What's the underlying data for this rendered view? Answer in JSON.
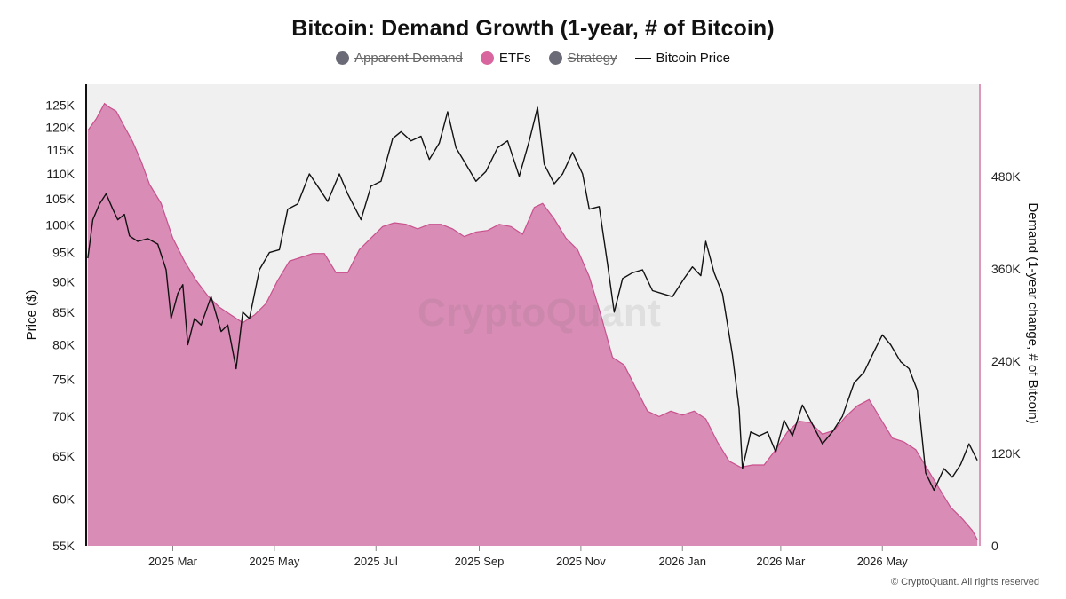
{
  "chart_data": {
    "type": "area",
    "title": "Bitcoin: Demand Growth (1-year, # of Bitcoin)",
    "legend": [
      {
        "name": "Apparent Demand",
        "color": "#6b6b78",
        "marker": "dot",
        "hidden": true
      },
      {
        "name": "ETFs",
        "color": "#d9659f",
        "marker": "dot",
        "hidden": false
      },
      {
        "name": "Strategy",
        "color": "#6b6b78",
        "marker": "dot",
        "hidden": true
      },
      {
        "name": "Bitcoin Price",
        "color": "#111111",
        "marker": "line",
        "hidden": false
      }
    ],
    "legend_placement": "top-center",
    "ylabel_left": "Price ($)",
    "ylabel_right": "Demand (1-year change, # of Bitcoin)",
    "y_left_scale": "log",
    "y_left_range": [
      55000,
      130000
    ],
    "y_left_ticks": [
      55000,
      60000,
      65000,
      70000,
      75000,
      80000,
      85000,
      90000,
      95000,
      100000,
      105000,
      110000,
      115000,
      120000,
      125000
    ],
    "y_left_tick_labels": [
      "55K",
      "60K",
      "65K",
      "70K",
      "75K",
      "80K",
      "85K",
      "90K",
      "95K",
      "100K",
      "105K",
      "110K",
      "115K",
      "120K",
      "125K"
    ],
    "y_right_range": [
      0,
      600000
    ],
    "y_right_ticks": [
      0,
      120000,
      240000,
      360000,
      480000
    ],
    "y_right_tick_labels": [
      "0",
      "120K",
      "240K",
      "360K",
      "480K"
    ],
    "x_range": [
      "2025-01-08",
      "2026-06-28"
    ],
    "x_ticks": [
      "2025-03-01",
      "2025-05-01",
      "2025-07-01",
      "2025-09-01",
      "2025-11-01",
      "2026-01-01",
      "2026-03-01",
      "2026-05-01"
    ],
    "x_tick_labels": [
      "2025 Mar",
      "2025 May",
      "2025 Jul",
      "2025 Sep",
      "2025 Nov",
      "2026 Jan",
      "2026 Mar",
      "2026 May"
    ],
    "grid": false,
    "series": [
      {
        "name": "ETFs",
        "axis": "right",
        "color": "#d9659f",
        "points": [
          [
            "2025-01-09",
            540000
          ],
          [
            "2025-01-14",
            555000
          ],
          [
            "2025-01-19",
            575000
          ],
          [
            "2025-01-22",
            570000
          ],
          [
            "2025-01-26",
            565000
          ],
          [
            "2025-01-31",
            545000
          ],
          [
            "2025-02-05",
            525000
          ],
          [
            "2025-02-10",
            500000
          ],
          [
            "2025-02-15",
            470000
          ],
          [
            "2025-02-22",
            445000
          ],
          [
            "2025-03-01",
            400000
          ],
          [
            "2025-03-08",
            370000
          ],
          [
            "2025-03-15",
            345000
          ],
          [
            "2025-03-22",
            325000
          ],
          [
            "2025-03-29",
            310000
          ],
          [
            "2025-04-05",
            300000
          ],
          [
            "2025-04-12",
            290000
          ],
          [
            "2025-04-19",
            300000
          ],
          [
            "2025-04-26",
            315000
          ],
          [
            "2025-05-03",
            345000
          ],
          [
            "2025-05-10",
            370000
          ],
          [
            "2025-05-17",
            375000
          ],
          [
            "2025-05-24",
            380000
          ],
          [
            "2025-05-31",
            380000
          ],
          [
            "2025-06-07",
            355000
          ],
          [
            "2025-06-14",
            355000
          ],
          [
            "2025-06-21",
            385000
          ],
          [
            "2025-06-28",
            400000
          ],
          [
            "2025-07-05",
            415000
          ],
          [
            "2025-07-12",
            420000
          ],
          [
            "2025-07-19",
            418000
          ],
          [
            "2025-07-26",
            412000
          ],
          [
            "2025-08-02",
            418000
          ],
          [
            "2025-08-09",
            418000
          ],
          [
            "2025-08-16",
            412000
          ],
          [
            "2025-08-23",
            402000
          ],
          [
            "2025-08-30",
            408000
          ],
          [
            "2025-09-06",
            410000
          ],
          [
            "2025-09-13",
            418000
          ],
          [
            "2025-09-20",
            415000
          ],
          [
            "2025-09-27",
            405000
          ],
          [
            "2025-10-04",
            440000
          ],
          [
            "2025-10-09",
            445000
          ],
          [
            "2025-10-16",
            425000
          ],
          [
            "2025-10-23",
            400000
          ],
          [
            "2025-10-30",
            385000
          ],
          [
            "2025-11-06",
            350000
          ],
          [
            "2025-11-13",
            300000
          ],
          [
            "2025-11-20",
            245000
          ],
          [
            "2025-11-27",
            235000
          ],
          [
            "2025-12-04",
            205000
          ],
          [
            "2025-12-11",
            175000
          ],
          [
            "2025-12-18",
            168000
          ],
          [
            "2025-12-25",
            175000
          ],
          [
            "2026-01-01",
            170000
          ],
          [
            "2026-01-08",
            175000
          ],
          [
            "2026-01-15",
            165000
          ],
          [
            "2026-01-22",
            135000
          ],
          [
            "2026-01-29",
            110000
          ],
          [
            "2026-02-05",
            102000
          ],
          [
            "2026-02-12",
            105000
          ],
          [
            "2026-02-19",
            105000
          ],
          [
            "2026-02-26",
            125000
          ],
          [
            "2026-03-05",
            148000
          ],
          [
            "2026-03-12",
            162000
          ],
          [
            "2026-03-19",
            160000
          ],
          [
            "2026-03-26",
            145000
          ],
          [
            "2026-04-02",
            150000
          ],
          [
            "2026-04-09",
            168000
          ],
          [
            "2026-04-16",
            182000
          ],
          [
            "2026-04-23",
            190000
          ],
          [
            "2026-04-30",
            165000
          ],
          [
            "2026-05-07",
            140000
          ],
          [
            "2026-05-14",
            135000
          ],
          [
            "2026-05-21",
            125000
          ],
          [
            "2026-05-28",
            100000
          ],
          [
            "2026-06-04",
            75000
          ],
          [
            "2026-06-11",
            50000
          ],
          [
            "2026-06-18",
            35000
          ],
          [
            "2026-06-24",
            20000
          ],
          [
            "2026-06-27",
            8000
          ]
        ]
      },
      {
        "name": "Bitcoin Price",
        "axis": "left",
        "color": "#111111",
        "points": [
          [
            "2025-01-09",
            94000
          ],
          [
            "2025-01-12",
            101000
          ],
          [
            "2025-01-16",
            104000
          ],
          [
            "2025-01-20",
            106000
          ],
          [
            "2025-01-24",
            103000
          ],
          [
            "2025-01-27",
            101000
          ],
          [
            "2025-01-31",
            102000
          ],
          [
            "2025-02-03",
            98000
          ],
          [
            "2025-02-08",
            97000
          ],
          [
            "2025-02-14",
            97500
          ],
          [
            "2025-02-20",
            96500
          ],
          [
            "2025-02-25",
            92000
          ],
          [
            "2025-02-28",
            84000
          ],
          [
            "2025-03-04",
            88000
          ],
          [
            "2025-03-07",
            89500
          ],
          [
            "2025-03-10",
            80000
          ],
          [
            "2025-03-14",
            84000
          ],
          [
            "2025-03-18",
            83000
          ],
          [
            "2025-03-24",
            87500
          ],
          [
            "2025-03-30",
            82000
          ],
          [
            "2025-04-03",
            83000
          ],
          [
            "2025-04-08",
            76500
          ],
          [
            "2025-04-12",
            85000
          ],
          [
            "2025-04-16",
            84000
          ],
          [
            "2025-04-22",
            92000
          ],
          [
            "2025-04-28",
            95000
          ],
          [
            "2025-05-04",
            95500
          ],
          [
            "2025-05-09",
            103000
          ],
          [
            "2025-05-15",
            104000
          ],
          [
            "2025-05-22",
            110000
          ],
          [
            "2025-05-28",
            107000
          ],
          [
            "2025-06-02",
            104500
          ],
          [
            "2025-06-09",
            110000
          ],
          [
            "2025-06-14",
            106000
          ],
          [
            "2025-06-22",
            101000
          ],
          [
            "2025-06-28",
            107500
          ],
          [
            "2025-07-04",
            108500
          ],
          [
            "2025-07-11",
            117500
          ],
          [
            "2025-07-16",
            119000
          ],
          [
            "2025-07-22",
            117000
          ],
          [
            "2025-07-28",
            118000
          ],
          [
            "2025-08-02",
            113000
          ],
          [
            "2025-08-08",
            116500
          ],
          [
            "2025-08-13",
            123500
          ],
          [
            "2025-08-18",
            115500
          ],
          [
            "2025-08-24",
            112000
          ],
          [
            "2025-08-30",
            108500
          ],
          [
            "2025-09-05",
            110500
          ],
          [
            "2025-09-12",
            115500
          ],
          [
            "2025-09-18",
            117000
          ],
          [
            "2025-09-25",
            109500
          ],
          [
            "2025-10-01",
            117000
          ],
          [
            "2025-10-06",
            124500
          ],
          [
            "2025-10-10",
            112000
          ],
          [
            "2025-10-16",
            108000
          ],
          [
            "2025-10-21",
            110000
          ],
          [
            "2025-10-27",
            114500
          ],
          [
            "2025-11-02",
            110000
          ],
          [
            "2025-11-06",
            103000
          ],
          [
            "2025-11-12",
            103500
          ],
          [
            "2025-11-17",
            93000
          ],
          [
            "2025-11-21",
            85000
          ],
          [
            "2025-11-26",
            90500
          ],
          [
            "2025-12-02",
            91500
          ],
          [
            "2025-12-08",
            92000
          ],
          [
            "2025-12-14",
            88500
          ],
          [
            "2025-12-20",
            88000
          ],
          [
            "2025-12-26",
            87500
          ],
          [
            "2026-01-02",
            90500
          ],
          [
            "2026-01-07",
            92500
          ],
          [
            "2026-01-12",
            91000
          ],
          [
            "2026-01-15",
            97000
          ],
          [
            "2026-01-20",
            91500
          ],
          [
            "2026-01-25",
            88000
          ],
          [
            "2026-01-31",
            78500
          ],
          [
            "2026-02-04",
            71000
          ],
          [
            "2026-02-06",
            63500
          ],
          [
            "2026-02-11",
            68000
          ],
          [
            "2026-02-16",
            67500
          ],
          [
            "2026-02-21",
            68000
          ],
          [
            "2026-02-26",
            65500
          ],
          [
            "2026-03-03",
            69500
          ],
          [
            "2026-03-08",
            67500
          ],
          [
            "2026-03-14",
            71500
          ],
          [
            "2026-03-20",
            69000
          ],
          [
            "2026-03-26",
            66500
          ],
          [
            "2026-04-01",
            68000
          ],
          [
            "2026-04-07",
            70000
          ],
          [
            "2026-04-14",
            74500
          ],
          [
            "2026-04-20",
            76000
          ],
          [
            "2026-04-26",
            79000
          ],
          [
            "2026-05-01",
            81500
          ],
          [
            "2026-05-06",
            80000
          ],
          [
            "2026-05-12",
            77500
          ],
          [
            "2026-05-17",
            76500
          ],
          [
            "2026-05-22",
            73500
          ],
          [
            "2026-05-27",
            63000
          ],
          [
            "2026-06-01",
            61000
          ],
          [
            "2026-06-07",
            63500
          ],
          [
            "2026-06-12",
            62500
          ],
          [
            "2026-06-17",
            64000
          ],
          [
            "2026-06-22",
            66500
          ],
          [
            "2026-06-27",
            64500
          ]
        ]
      }
    ]
  },
  "watermark": "CryptoQuant",
  "copyright": "© CryptoQuant. All rights reserved"
}
